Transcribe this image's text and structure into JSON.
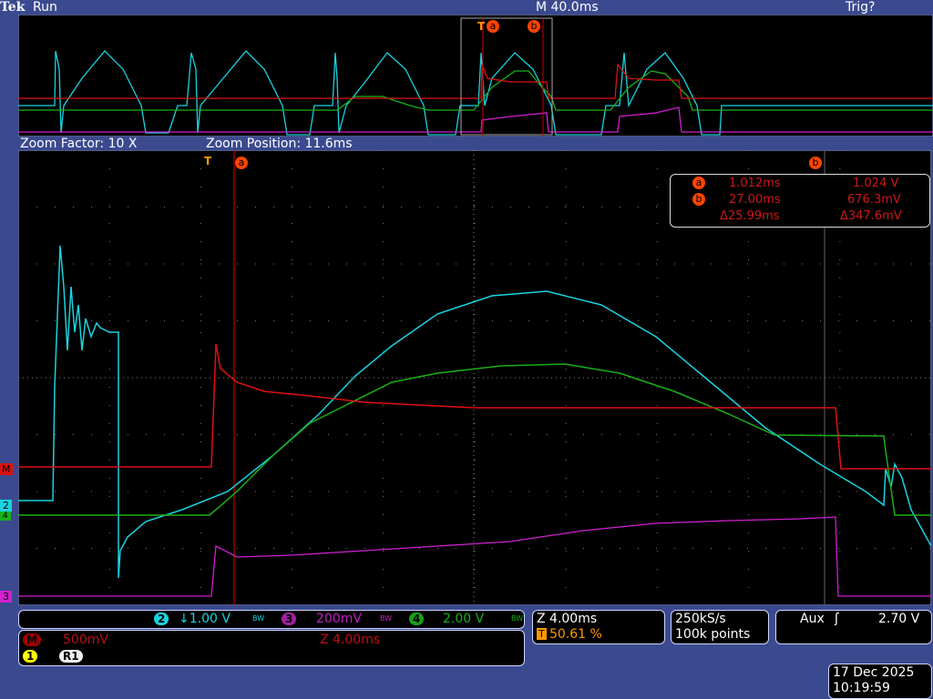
{
  "header": {
    "brand": "Tek",
    "status": "Run",
    "timebase": "M 40.0ms",
    "trigger_state": "Trig?"
  },
  "zoom_bar": {
    "factor": "Zoom Factor: 10 X",
    "position": "Zoom Position: 11.6ms"
  },
  "cursors": {
    "a_label": "a",
    "b_label": "b",
    "trigger_label": "T",
    "a_time": "1.012ms",
    "a_value": "1.024 V",
    "b_time": "27.00ms",
    "b_value": "676.3mV",
    "delta_time": "Δ25.99ms",
    "delta_value": "Δ347.6mV"
  },
  "channels": {
    "ch2": {
      "num": "2",
      "scale": "↓1.00 V",
      "color": "#19d3e0"
    },
    "ch3": {
      "num": "3",
      "scale": "200mV",
      "color": "#d020d0"
    },
    "ch4": {
      "num": "4",
      "scale": "2.00 V",
      "color": "#19b019"
    },
    "math": {
      "num": "M",
      "scale": "500mV",
      "zoom": "Z 4.00ms",
      "color": "#e01010"
    },
    "bw": "BW"
  },
  "ref": {
    "ch": "1",
    "ref": "R1"
  },
  "horizontal": {
    "zoom": "Z 4.00ms",
    "trigger_pos": "50.61 %",
    "trigger_icon": "T"
  },
  "acquisition": {
    "rate": "250kS/s",
    "points": "100k points"
  },
  "trigger": {
    "source": "Aux",
    "slope": "rising-edge",
    "slope_glyph": "ʃ",
    "level": "2.70 V"
  },
  "datetime": {
    "date": "17 Dec  2025",
    "time": "10:19:59"
  }
}
